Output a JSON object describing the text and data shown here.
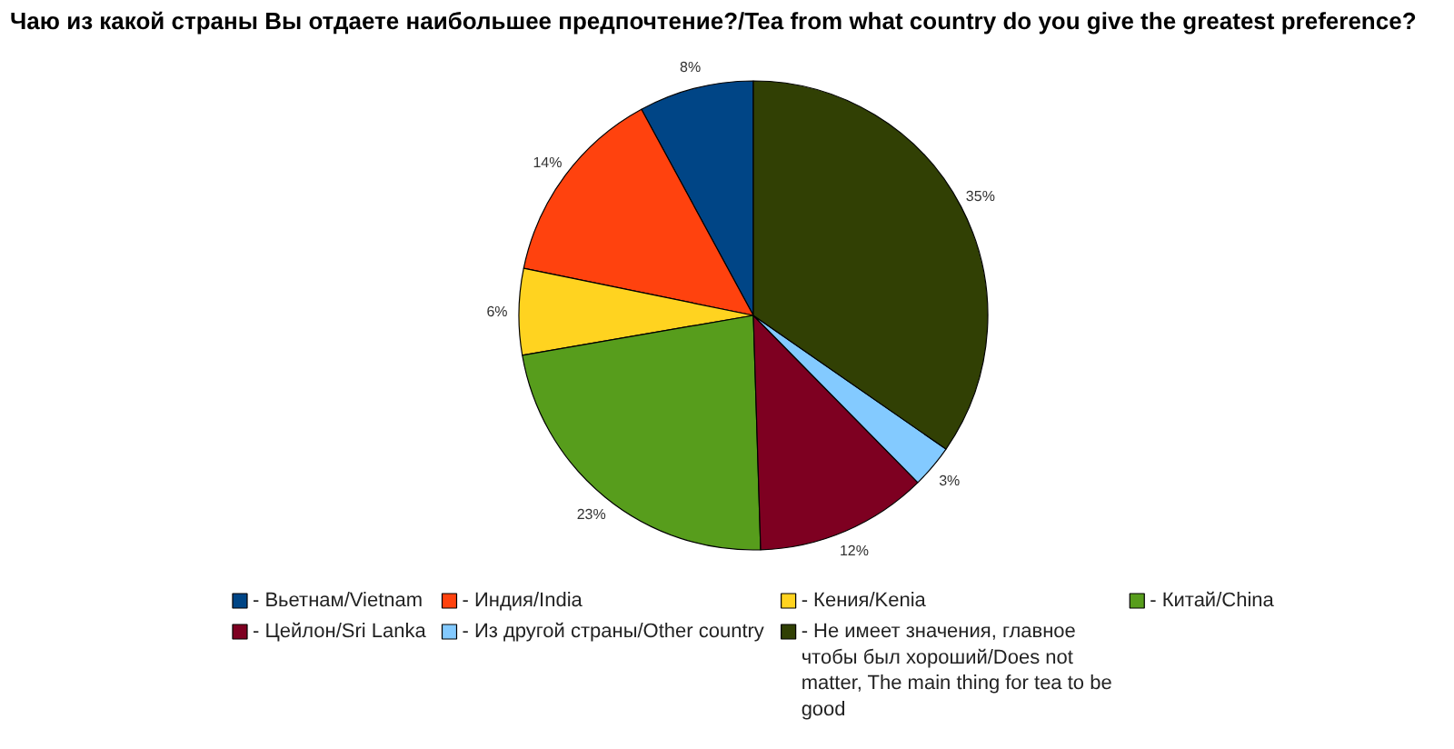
{
  "chart_data": {
    "type": "pie",
    "title": "Чаю из какой страны Вы отдаете наибольшее предпочтение?/Tea from what country do you give the greatest preference?",
    "categories": [
      "- Вьетнам/Vietnam",
      "- Индия/India",
      "- Кения/Kenia",
      "- Китай/China",
      "- Цейлон/Sri Lanka",
      "- Из другой страны/Other country",
      "- Не имеет значения, главное чтобы был хороший/Does not matter, The main thing for tea to be good"
    ],
    "values": [
      8,
      14,
      6,
      23,
      12,
      3,
      35
    ],
    "colors": [
      "#004586",
      "#ff420e",
      "#ffd320",
      "#579d1c",
      "#7e0021",
      "#83caff",
      "#314004"
    ],
    "value_labels": [
      "8%",
      "14%",
      "6%",
      "23%",
      "12%",
      "3%",
      "35%"
    ],
    "legend": "bottom"
  }
}
